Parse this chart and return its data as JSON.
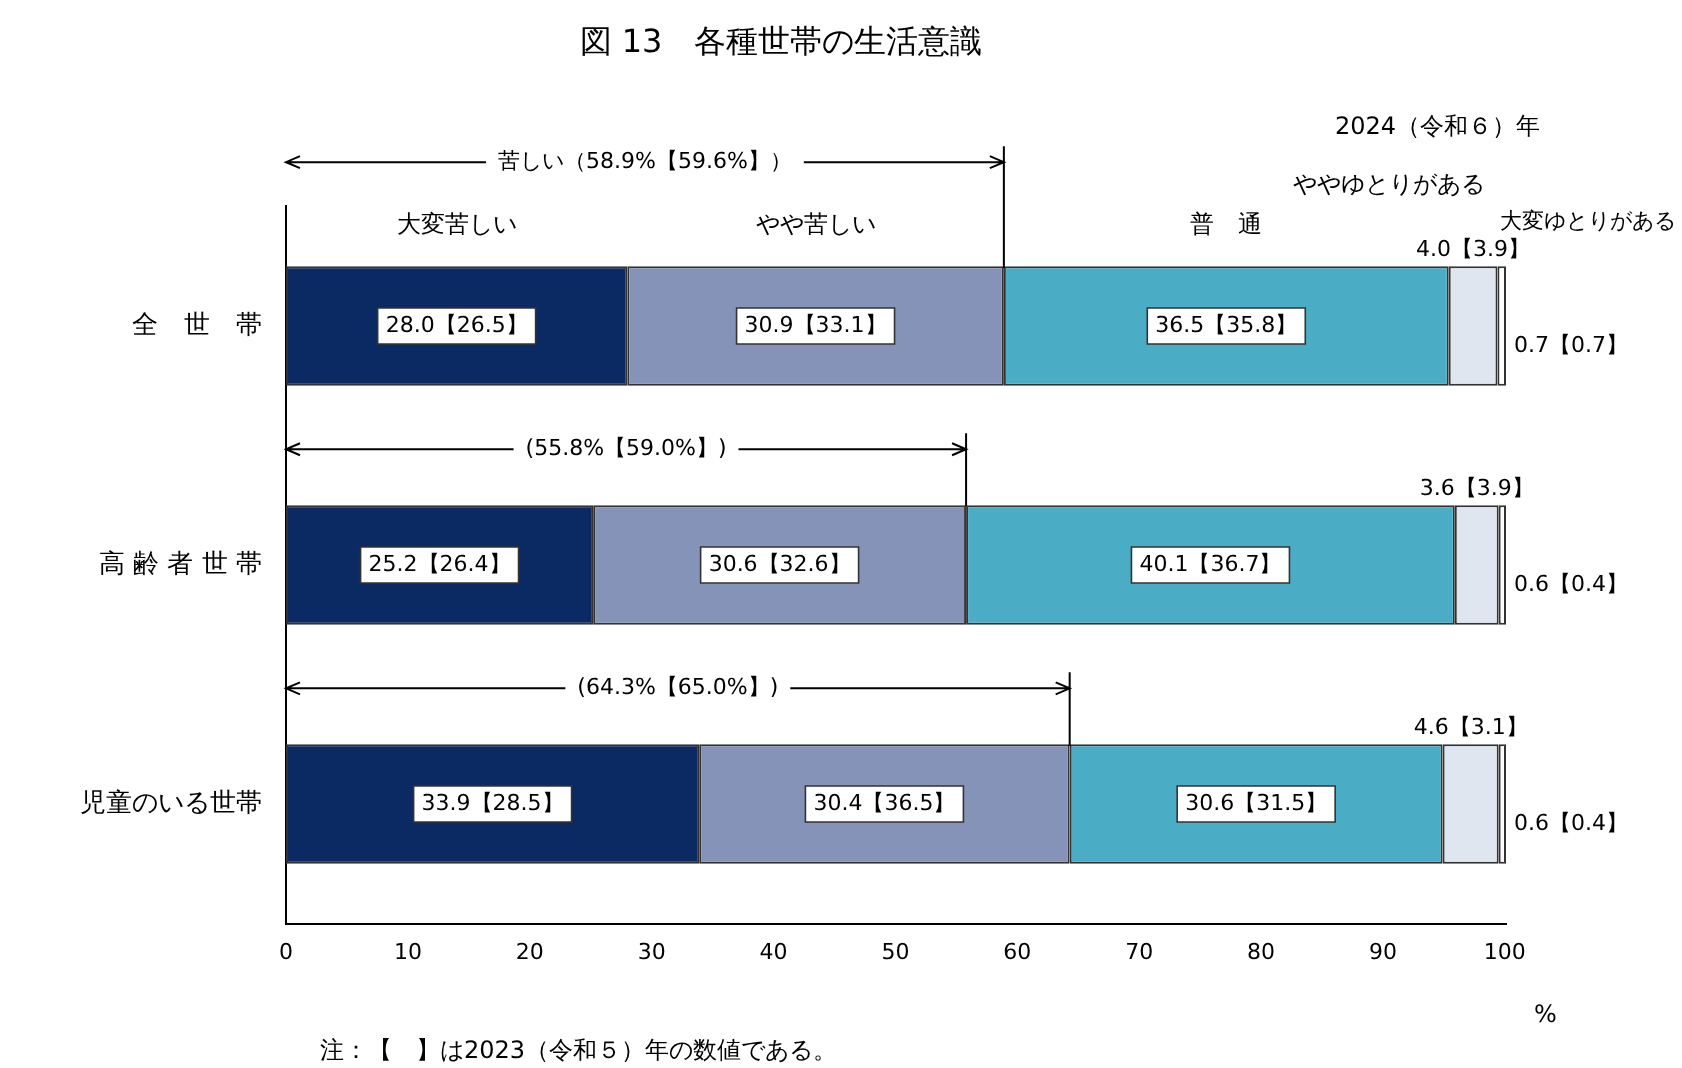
{
  "chart_data": {
    "type": "bar",
    "orientation": "horizontal",
    "stacked": true,
    "title": "図 13　各種世帯の生活意識",
    "subtitle": "2024（令和６）年",
    "xlabel": "%",
    "categories": [
      "全　世　帯",
      "高 齢 者 世 帯",
      "児童のいる世帯"
    ],
    "series": [
      {
        "name": "大変苦しい",
        "color": "#0b2a63",
        "values": [
          28.0,
          25.2,
          33.9
        ],
        "value_labels": [
          "28.0【26.5】",
          "25.2【26.4】",
          "33.9【28.5】"
        ]
      },
      {
        "name": "やや苦しい",
        "color": "#8593b8",
        "values": [
          30.9,
          30.6,
          30.4
        ],
        "value_labels": [
          "30.9【33.1】",
          "30.6【32.6】",
          "30.4【36.5】"
        ]
      },
      {
        "name": "普　通",
        "color": "#4bacc6",
        "values": [
          36.5,
          40.1,
          30.6
        ],
        "value_labels": [
          "36.5【35.8】",
          "40.1【36.7】",
          "30.6【31.5】"
        ]
      },
      {
        "name": "ややゆとりがある",
        "color": "#dfe6f0",
        "values": [
          4.0,
          3.6,
          4.6
        ],
        "value_labels": [
          "4.0【3.9】",
          "3.6【3.9】",
          "4.6【3.1】"
        ]
      },
      {
        "name": "大変ゆとりがある",
        "color": "#ffffff",
        "values": [
          0.7,
          0.6,
          0.6
        ],
        "value_labels": [
          "0.7【0.7】",
          "0.6【0.4】",
          "0.6【0.4】"
        ]
      }
    ],
    "xlim": [
      0,
      100.1
    ],
    "xticks": [
      0,
      10,
      20,
      30,
      40,
      50,
      60,
      70,
      80,
      90,
      100
    ],
    "grid": false,
    "legend": false,
    "annotations": [
      "苦しい（58.9%【59.6%】）",
      "(55.8%【59.0%】)",
      "(64.3%【65.0%】)",
      "注：【　】は2023（令和５）年の数値である。"
    ]
  }
}
